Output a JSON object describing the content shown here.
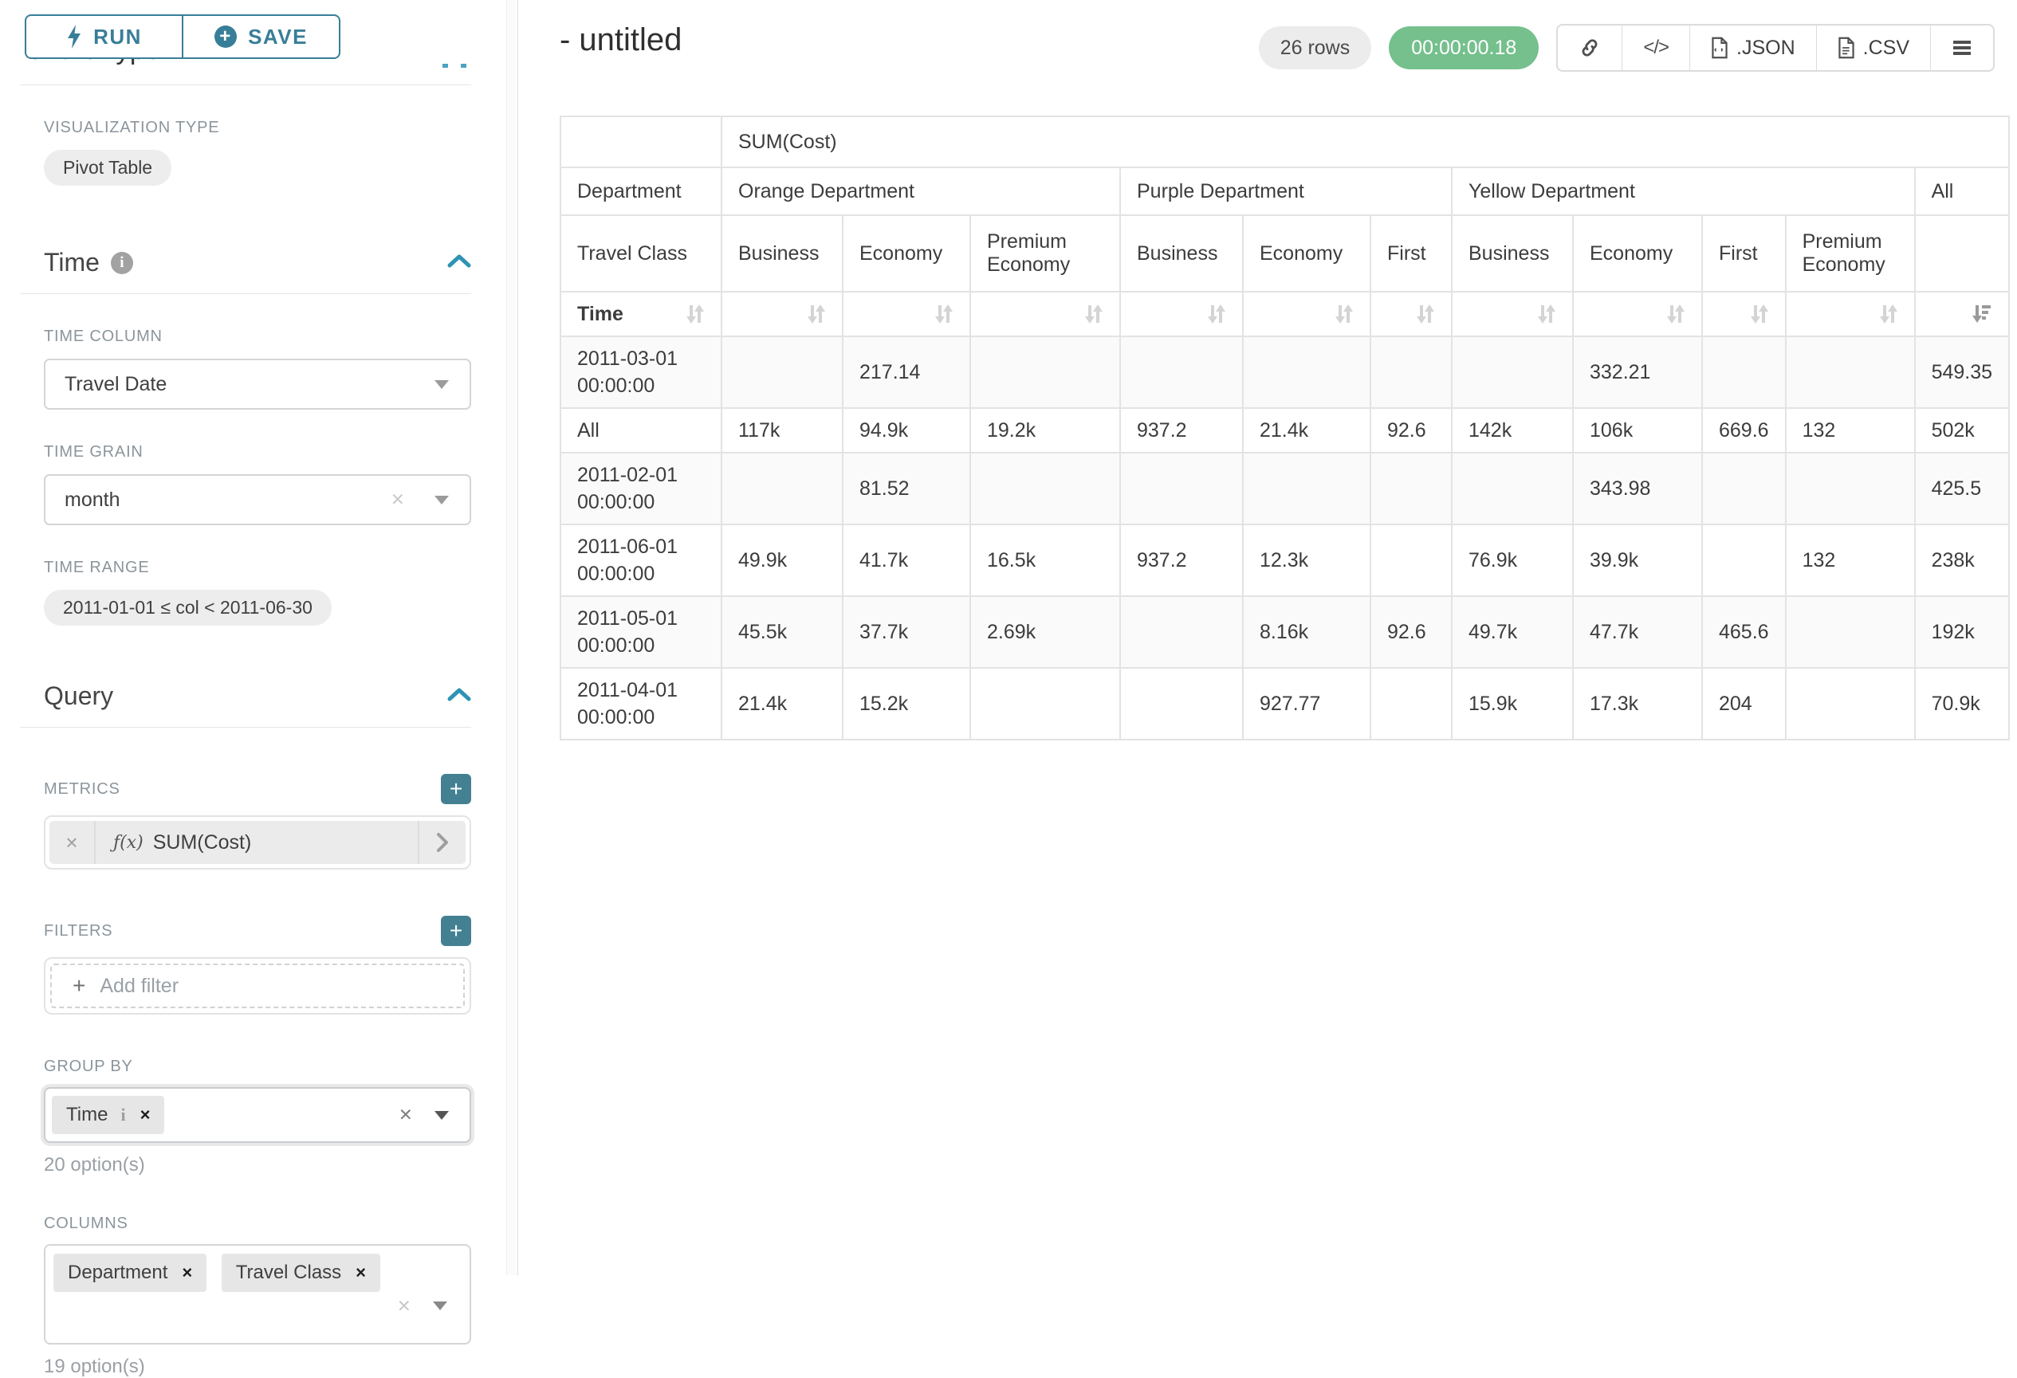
{
  "colors": {
    "accent_teal": "#387e98",
    "plus_button_teal": "#438092",
    "timer_green": "#75c08d",
    "badge_gray": "#ececec"
  },
  "toolbar": {
    "run": "RUN",
    "save": "SAVE"
  },
  "sidebar": {
    "clipped_heading": "Chart Type",
    "viz_label": "VISUALIZATION TYPE",
    "viz_value": "Pivot Table",
    "time": {
      "heading": "Time",
      "col_label": "TIME COLUMN",
      "col_value": "Travel Date",
      "grain_label": "TIME GRAIN",
      "grain_value": "month",
      "range_label": "TIME RANGE",
      "range_value": "2011-01-01 ≤ col < 2011-06-30"
    },
    "query": {
      "heading": "Query",
      "metrics_label": "METRICS",
      "metric_fx": "ƒ(x)",
      "metric_name": "SUM(Cost)",
      "filters_label": "FILTERS",
      "add_filter": "Add filter",
      "groupby_label": "GROUP BY",
      "groupby_tag": "Time",
      "groupby_options": "20 option(s)",
      "columns_label": "COLUMNS",
      "columns_tags": [
        "Department",
        "Travel Class"
      ],
      "columns_options": "19 option(s)"
    }
  },
  "header": {
    "title": "- untitled",
    "rows_badge": "26 rows",
    "timer": "00:00:00.18",
    "export_json": ".JSON",
    "export_csv": ".CSV"
  },
  "chart_data": {
    "type": "table",
    "metric": "SUM(Cost)",
    "row_dimension_label": "Time",
    "corner_department": "Department",
    "corner_travel_class": "Travel Class",
    "all_label": "All",
    "column_groups": [
      {
        "label": "Orange Department",
        "cols": [
          "Business",
          "Economy",
          "Premium Economy"
        ]
      },
      {
        "label": "Purple Department",
        "cols": [
          "Business",
          "Economy",
          "First"
        ]
      },
      {
        "label": "Yellow Department",
        "cols": [
          "Business",
          "Economy",
          "First",
          "Premium Economy"
        ]
      }
    ],
    "rows": [
      {
        "label": "2011-03-01 00:00:00",
        "values": [
          "",
          "217.14",
          "",
          "",
          "",
          "",
          "",
          "332.21",
          "",
          "",
          "549.35"
        ]
      },
      {
        "label": "All",
        "values": [
          "117k",
          "94.9k",
          "19.2k",
          "937.2",
          "21.4k",
          "92.6",
          "142k",
          "106k",
          "669.6",
          "132",
          "502k"
        ]
      },
      {
        "label": "2011-02-01 00:00:00",
        "values": [
          "",
          "81.52",
          "",
          "",
          "",
          "",
          "",
          "343.98",
          "",
          "",
          "425.5"
        ]
      },
      {
        "label": "2011-06-01 00:00:00",
        "values": [
          "49.9k",
          "41.7k",
          "16.5k",
          "937.2",
          "12.3k",
          "",
          "76.9k",
          "39.9k",
          "",
          "132",
          "238k"
        ]
      },
      {
        "label": "2011-05-01 00:00:00",
        "values": [
          "45.5k",
          "37.7k",
          "2.69k",
          "",
          "8.16k",
          "92.6",
          "49.7k",
          "47.7k",
          "465.6",
          "",
          "192k"
        ]
      },
      {
        "label": "2011-04-01 00:00:00",
        "values": [
          "21.4k",
          "15.2k",
          "",
          "",
          "927.77",
          "",
          "15.9k",
          "17.3k",
          "204",
          "",
          "70.9k"
        ]
      }
    ]
  }
}
